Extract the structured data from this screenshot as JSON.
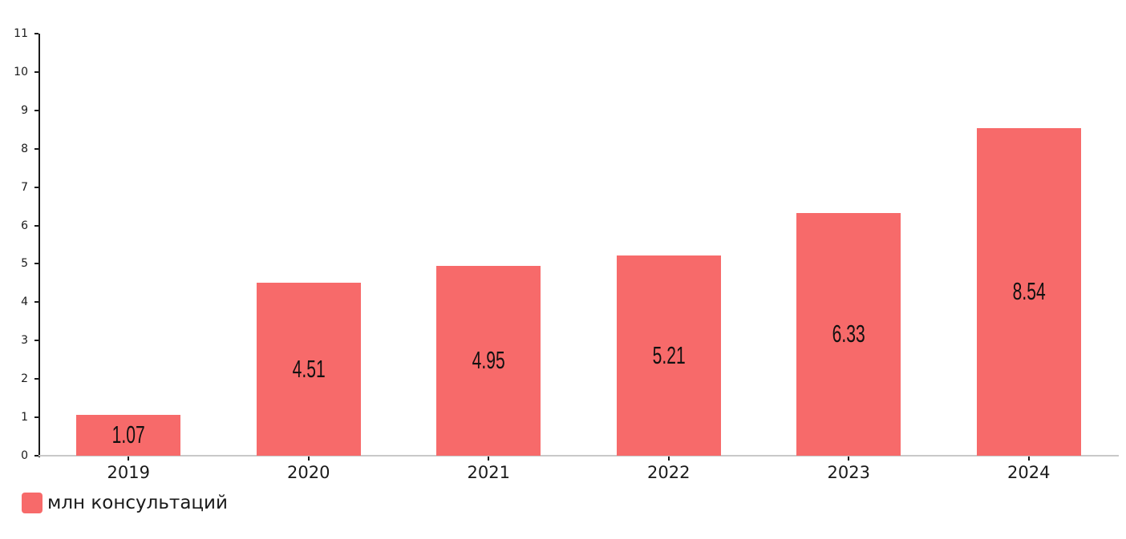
{
  "chart_data": {
    "type": "bar",
    "title": "",
    "xlabel": "",
    "ylabel": "",
    "categories": [
      "2019",
      "2020",
      "2021",
      "2022",
      "2023",
      "2024"
    ],
    "values": [
      1.07,
      4.51,
      4.95,
      5.21,
      6.33,
      8.54
    ],
    "bar_labels": [
      "1.07",
      "4.51",
      "4.95",
      "5.21",
      "6.33",
      "8.54"
    ],
    "ylim": [
      0,
      11
    ],
    "ytick_step": 1,
    "grid": false,
    "legend": {
      "position": "bottom-left",
      "entries": [
        {
          "label": "млн консультаций",
          "color": "#F76A6A"
        }
      ]
    },
    "colors": {
      "bar": "#F76A6A",
      "y_axis": "#1a1a1a",
      "x_axis_line": "#c9c9c9",
      "text": "#1a1a1a",
      "bar_value_text": "#111111"
    }
  }
}
